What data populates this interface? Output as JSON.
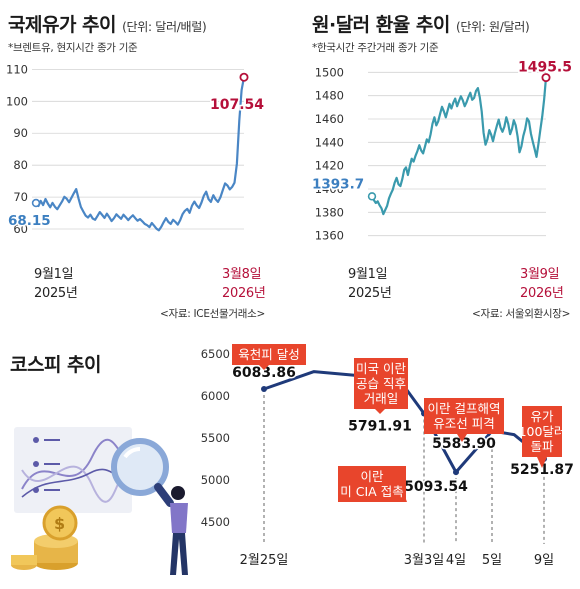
{
  "oil": {
    "title": "국제유가 추이",
    "unit": "(단위: 달러/배럴)",
    "note": "*브렌트유, 현지시간 종가 기준",
    "source": "<자료: ICE선물거래소>",
    "start_date": "9월1일",
    "start_year": "2025년",
    "end_date": "3월8일",
    "end_year": "2026년"
  },
  "krw": {
    "title": "원·달러 환율 추이",
    "unit": "(단위: 원/달러)",
    "note": "*한국시간 주간거래 종가 기준",
    "source": "<자료: 서울외환시장>",
    "start_date": "9월1일",
    "start_year": "2025년",
    "end_date": "3월9일",
    "end_year": "2026년"
  },
  "kospi": {
    "title": "코스피 추이"
  },
  "colors": {
    "line_teal": "#3a9aad",
    "line_blue": "#4a86c5",
    "highlight_red": "#b5103a",
    "kospi_line": "#1f3a7a",
    "callout_red": "#e8452c",
    "start_label_blue": "#3c7fc0"
  },
  "chart_data": [
    {
      "type": "line",
      "title": "국제유가 추이",
      "ylim": [
        55,
        112
      ],
      "yticks": [
        60,
        70,
        80,
        90,
        100,
        110
      ],
      "start_value": 68.15,
      "end_value": 107.54,
      "start_label": "68.15",
      "end_label": "107.54",
      "values": [
        68.15,
        67.2,
        68.8,
        67.5,
        69.4,
        68.0,
        66.8,
        68.2,
        67.0,
        66.2,
        67.4,
        68.6,
        70.1,
        69.5,
        68.4,
        69.8,
        71.2,
        72.5,
        69.6,
        66.9,
        65.5,
        64.2,
        63.6,
        64.5,
        63.3,
        62.9,
        64.1,
        65.3,
        64.4,
        63.5,
        64.8,
        63.7,
        62.5,
        63.4,
        64.6,
        63.9,
        63.2,
        64.5,
        63.7,
        62.8,
        63.6,
        64.3,
        63.4,
        62.6,
        63.1,
        62.4,
        61.6,
        61.2,
        60.6,
        61.9,
        61.0,
        60.1,
        59.6,
        60.7,
        62.1,
        63.4,
        62.2,
        61.6,
        62.9,
        62.2,
        61.4,
        62.8,
        64.6,
        65.7,
        66.3,
        65.1,
        67.3,
        68.6,
        67.4,
        66.6,
        68.3,
        70.4,
        71.7,
        69.4,
        68.5,
        70.6,
        69.3,
        68.5,
        69.9,
        72.1,
        74.3,
        73.6,
        72.4,
        73.2,
        74.5,
        80.5,
        94.0,
        103.5,
        107.54
      ]
    },
    {
      "type": "line",
      "title": "원·달러 환율 추이",
      "ylim": [
        1352,
        1508
      ],
      "yticks": [
        1360,
        1380,
        1400,
        1420,
        1440,
        1460,
        1480,
        1500
      ],
      "start_value": 1393.7,
      "end_value": 1495.5,
      "start_label": "1393.7",
      "end_label": "1495.5",
      "values": [
        1393.7,
        1390.5,
        1388.0,
        1389.5,
        1386.0,
        1383.5,
        1378.5,
        1382.0,
        1385.5,
        1392.0,
        1396.0,
        1399.5,
        1405.5,
        1409.5,
        1404.0,
        1402.5,
        1408.5,
        1416.5,
        1418.5,
        1412.0,
        1419.5,
        1426.0,
        1423.5,
        1428.5,
        1432.5,
        1437.5,
        1433.0,
        1430.5,
        1436.5,
        1442.5,
        1440.0,
        1447.0,
        1456.0,
        1461.5,
        1454.5,
        1458.0,
        1464.5,
        1470.5,
        1466.5,
        1461.5,
        1467.5,
        1473.0,
        1469.0,
        1474.0,
        1477.5,
        1471.0,
        1475.5,
        1479.5,
        1476.0,
        1471.0,
        1474.5,
        1479.0,
        1482.5,
        1476.5,
        1478.0,
        1484.0,
        1486.5,
        1478.5,
        1466.5,
        1448.0,
        1438.0,
        1442.5,
        1450.5,
        1446.5,
        1441.0,
        1448.0,
        1454.0,
        1459.5,
        1452.5,
        1449.0,
        1453.5,
        1461.5,
        1456.0,
        1447.0,
        1451.5,
        1459.0,
        1454.5,
        1445.0,
        1431.5,
        1436.5,
        1445.5,
        1451.5,
        1460.5,
        1458.0,
        1447.5,
        1440.5,
        1434.0,
        1427.5,
        1438.5,
        1450.5,
        1462.0,
        1476.5,
        1495.5
      ]
    },
    {
      "type": "line",
      "title": "코스피 추이",
      "ylim": [
        4500,
        6500
      ],
      "yticks": [
        4500,
        5000,
        5500,
        6000,
        6500
      ],
      "x_labels": [
        "2월25일",
        "3월3일",
        "4일",
        "5일",
        "9일"
      ],
      "points": [
        {
          "value": 6083.86,
          "label": "6083.86",
          "event": "육천피 달성",
          "tick": "2월25일"
        },
        {
          "value": 6290,
          "label": "",
          "event": "",
          "tick": ""
        },
        {
          "value": 6240,
          "label": "",
          "event": "",
          "tick": ""
        },
        {
          "value": 6150,
          "label": "",
          "event": "",
          "tick": ""
        },
        {
          "value": 5791.91,
          "label": "5791.91",
          "event": "미국 이란 공습 직후 거래일",
          "tick": "3월3일"
        },
        {
          "value": 5093.54,
          "label": "5093.54",
          "event": "이란 미 CIA 접촉",
          "tick": "4일"
        },
        {
          "value": 5583.9,
          "label": "5583.90",
          "event": "이란 걸프해역 유조선 피격",
          "tick": "5일"
        },
        {
          "value": 5540,
          "label": "",
          "event": "",
          "tick": ""
        },
        {
          "value": 5251.87,
          "label": "5251.87",
          "event": "유가 100달러 돌파",
          "tick": "9일"
        }
      ],
      "callouts": {
        "c1": "육천피 달성",
        "c2_line1": "미국 이란",
        "c2_line2": "공습 직후",
        "c2_line3": "거래일",
        "c3_line1": "이란",
        "c3_line2": "미 CIA 접촉",
        "c4_line1": "이란 걸프해역",
        "c4_line2": "유조선 피격",
        "c5_line1": "유가",
        "c5_line2": "100달러",
        "c5_line3": "돌파"
      }
    }
  ]
}
